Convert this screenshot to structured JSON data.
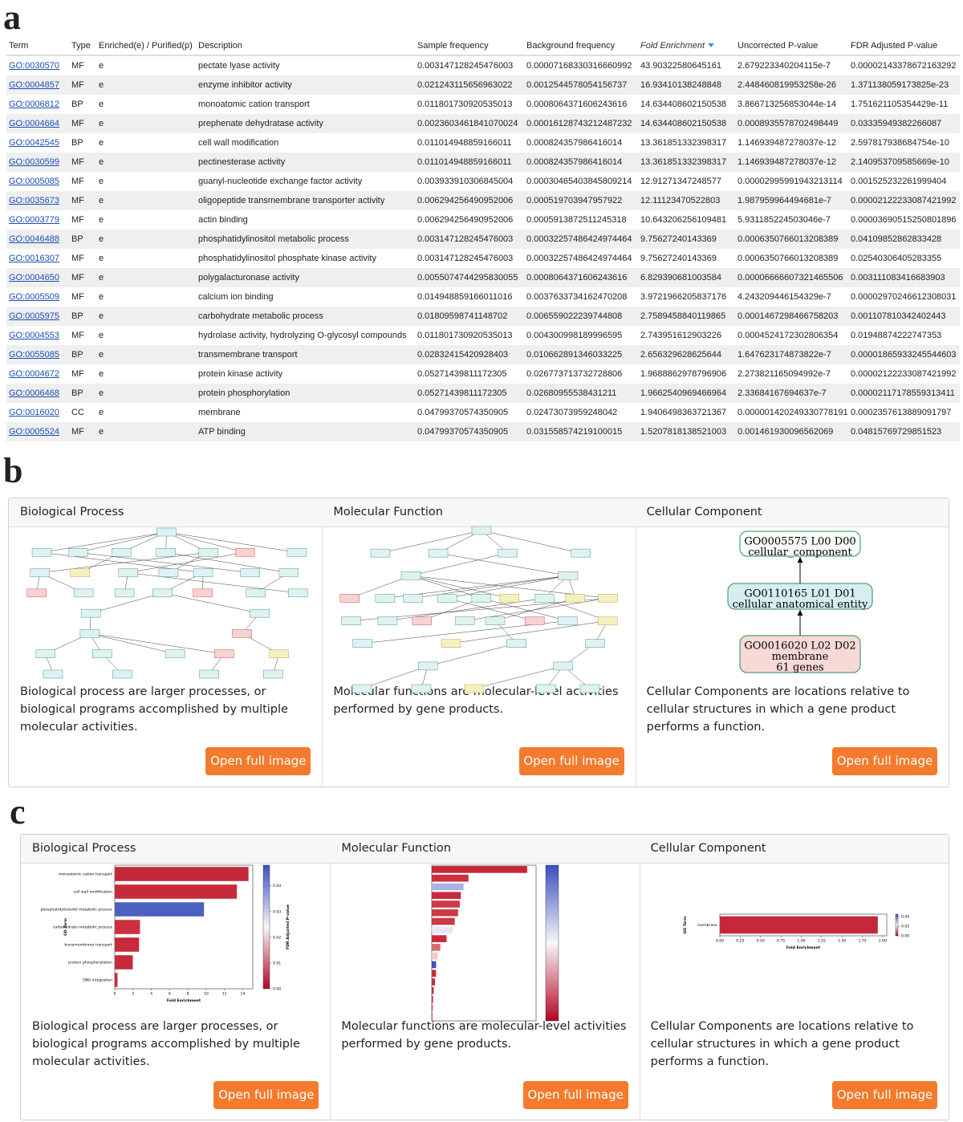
{
  "panel_labels": [
    "a",
    "b",
    "c"
  ],
  "table": {
    "headers": [
      "Term",
      "Type",
      "Enriched(e) / Purified(p)",
      "Description",
      "Sample frequency",
      "Background frequency",
      "Fold Enrichment",
      "Uncorrected P-value",
      "FDR Adjusted P-value"
    ],
    "rows": [
      [
        "GO:0030570",
        "MF",
        "e",
        "pectate lyase activity",
        "0.003147128245476003",
        "0.00007168330316660992",
        "43.90322580645161",
        "2.679223340204115e-7",
        "0.00002143378672163292"
      ],
      [
        "GO:0004857",
        "MF",
        "e",
        "enzyme inhibitor activity",
        "0.021243115656963022",
        "0.0012544578054156737",
        "16.93410138248848",
        "2.448460819953258e-26",
        "1.371138059173825e-23"
      ],
      [
        "GO:0006812",
        "BP",
        "e",
        "monoatomic cation transport",
        "0.011801730920535013",
        "0.0008064371606243616",
        "14.634408602150538",
        "3.866713256853044e-14",
        "1.751621105354429e-11"
      ],
      [
        "GO:0004664",
        "MF",
        "e",
        "prephenate dehydratase activity",
        "0.0023603461841070024",
        "0.00016128743212487232",
        "14.634408602150538",
        "0.0008935578702498449",
        "0.03335949382266087"
      ],
      [
        "GO:0042545",
        "BP",
        "e",
        "cell wall modification",
        "0.011014948859166011",
        "0.000824357986416014",
        "13.361851332398317",
        "1.146939487278037e-12",
        "2.597817938684754e-10"
      ],
      [
        "GO:0030599",
        "MF",
        "e",
        "pectinesterase activity",
        "0.011014948859166011",
        "0.000824357986416014",
        "13.361851332398317",
        "1.146939487278037e-12",
        "2.140953709585669e-10"
      ],
      [
        "GO:0005085",
        "MF",
        "e",
        "guanyl-nucleotide exchange factor activity",
        "0.003933910306845004",
        "0.00030465403845809214",
        "12.91271347248577",
        "0.00002995991943213114",
        "0.001525232261999404"
      ],
      [
        "GO:0035673",
        "MF",
        "e",
        "oligopeptide transmembrane transporter activity",
        "0.006294256490952006",
        "0.000519703947957922",
        "12.11123470522803",
        "1.987959964494681e-7",
        "0.00002122233087421992"
      ],
      [
        "GO:0003779",
        "MF",
        "e",
        "actin binding",
        "0.006294256490952006",
        "0.0005913872511245318",
        "10.643206256109481",
        "5.931185224503046e-7",
        "0.00003690515250801896"
      ],
      [
        "GO:0046488",
        "BP",
        "e",
        "phosphatidylinositol metabolic process",
        "0.003147128245476003",
        "0.00032257486424974464",
        "9.75627240143369",
        "0.0006350766013208389",
        "0.04109852862833428"
      ],
      [
        "GO:0016307",
        "MF",
        "e",
        "phosphatidylinositol phosphate kinase activity",
        "0.003147128245476003",
        "0.00032257486424974464",
        "9.75627240143369",
        "0.0006350766013208389",
        "0.02540306405283355"
      ],
      [
        "GO:0004650",
        "MF",
        "e",
        "polygalacturonase activity",
        "0.0055074744295830055",
        "0.0008064371606243616",
        "6.829390681003584",
        "0.00006666607321465506",
        "0.003111083416683903"
      ],
      [
        "GO:0005509",
        "MF",
        "e",
        "calcium ion binding",
        "0.014948859166011016",
        "0.0037633734162470208",
        "3.9721966205837176",
        "4.243209446154329e-7",
        "0.00002970246612308031"
      ],
      [
        "GO:0005975",
        "BP",
        "e",
        "carbohydrate metabolic process",
        "0.01809598741148702",
        "0.006559022239744808",
        "2.7589458840119865",
        "0.0001467298466758203",
        "0.001107810342402443"
      ],
      [
        "GO:0004553",
        "MF",
        "e",
        "hydrolase activity, hydrolyzing O-glycosyl compounds",
        "0.011801730920535013",
        "0.004300998189996595",
        "2.743951612903226",
        "0.0004524172302806354",
        "0.01948874222747353"
      ],
      [
        "GO:0055085",
        "BP",
        "e",
        "transmembrane transport",
        "0.02832415420928403",
        "0.010662891346033225",
        "2.656329628625644",
        "1.647623174873822e-7",
        "0.00001865933245544603"
      ],
      [
        "GO:0004672",
        "MF",
        "e",
        "protein kinase activity",
        "0.05271439811172305",
        "0.026773713732728806",
        "1.9688862978796906",
        "2.273821165094992e-7",
        "0.00002122233087421992"
      ],
      [
        "GO:0006468",
        "BP",
        "e",
        "protein phosphorylation",
        "0.05271439811172305",
        "0.02680955538431211",
        "1.9662540969466964",
        "2.33684167694637e-7",
        "0.00002117178559313411"
      ],
      [
        "GO:0016020",
        "CC",
        "e",
        "membrane",
        "0.04799370574350905",
        "0.02473073959248042",
        "1.9406498363721367",
        "0.000001420249330778191",
        "0.0002357613889091797"
      ],
      [
        "GO:0005524",
        "MF",
        "e",
        "ATP binding",
        "0.04799370574350905",
        "0.031558574219100015",
        "1.5207818138521003",
        "0.001461930096562069",
        "0.04815769729851523"
      ]
    ]
  },
  "graph_cards": [
    {
      "title": "Biological Process",
      "description": "Biological process are larger processes, or biological programs accomplished by multiple molecular activities.",
      "button": "Open full image"
    },
    {
      "title": "Molecular Function",
      "description": "Molecular functions are molecular-level activities performed by gene products.",
      "button": "Open full image"
    },
    {
      "title": "Cellular Component",
      "description": "Cellular Components are locations relative to cellular structures in which a gene product performs a function.",
      "button": "Open full image"
    }
  ],
  "cellular_component_nodes": [
    [
      "GO0005575 L00 D00",
      "cellular_component"
    ],
    [
      "GO0110165 L01 D01",
      "cellular anatomical entity"
    ],
    [
      "GO0016020 L02 D02",
      "membrane",
      "61 genes"
    ]
  ],
  "chart_cards": [
    {
      "title": "Biological Process",
      "description": "Biological process are larger processes, or biological programs accomplished by multiple molecular activities.",
      "button": "Open full image"
    },
    {
      "title": "Molecular Function",
      "description": "Molecular functions are molecular-level activities performed by gene products.",
      "button": "Open full image"
    },
    {
      "title": "Cellular Component",
      "description": "Cellular Components are locations relative to cellular structures in which a gene product performs a function.",
      "button": "Open full image"
    }
  ],
  "chart_data": [
    {
      "type": "bar",
      "orientation": "horizontal",
      "categories": [
        "monoatomic cation transport",
        "cell wall modification",
        "phosphatidylinositol metabolic process",
        "carbohydrate metabolic process",
        "transmembrane transport",
        "protein phosphorylation",
        "DNA integration"
      ],
      "values": [
        14.63,
        13.36,
        9.76,
        2.76,
        2.66,
        1.97,
        0.3
      ],
      "colors": [
        "#c5283a",
        "#c8293b",
        "#4d5fc0",
        "#cc2f3d",
        "#c8293b",
        "#c8293b",
        "#c8293b"
      ],
      "xlim": [
        0,
        15.1
      ],
      "xticks": [
        0,
        2,
        4,
        6,
        8,
        10,
        12,
        14
      ],
      "x_label": "Fold Enrichment",
      "y_label": "GO Term",
      "colorbar_label": "FDR Adjusted P-value",
      "colorbar_lim": [
        0,
        0.048
      ],
      "colorbar_ticks": [
        {
          "value": 0,
          "label": "0.00"
        },
        {
          "value": 0.01,
          "label": "0.01"
        },
        {
          "value": 0.02,
          "label": "0.02"
        },
        {
          "value": 0.03,
          "label": "0.03"
        },
        {
          "value": 0.04,
          "label": "0.04"
        }
      ]
    },
    {
      "type": "bar",
      "orientation": "horizontal",
      "categories": [
        null,
        null,
        null,
        null,
        null,
        null,
        null,
        null,
        null,
        null,
        null,
        null,
        null,
        null,
        null,
        null,
        null,
        null
      ],
      "values": [
        43.9,
        16.9,
        14.6,
        13.4,
        12.9,
        12.1,
        10.6,
        9.76,
        6.83,
        3.97,
        2.74,
        2.0,
        1.97,
        1.52,
        0.9,
        0.6,
        0.4,
        0.3
      ],
      "colors": [
        "#c5283a",
        "#cc2f3d",
        "#a9b4e2",
        "#c8293b",
        "#cc3a44",
        "#cc3a44",
        "#cc3a44",
        "#e9e6f2",
        "#c8293b",
        "#d86b6e",
        "#f2c9c9",
        "#3a52b8",
        "#c8293b",
        "#c8293b",
        "#c8293b",
        "#c8293b",
        "#c8293b",
        "#c8293b"
      ],
      "xlim": [
        0,
        48
      ]
    },
    {
      "type": "bar",
      "orientation": "horizontal",
      "categories": [
        "membrane"
      ],
      "values": [
        1.94
      ],
      "colors": [
        "#c5283a"
      ],
      "xlim": [
        0,
        2.05
      ],
      "xticks": [
        {
          "value": 0,
          "label": "0.00"
        },
        {
          "value": 0.25,
          "label": "0.25"
        },
        {
          "value": 0.5,
          "label": "0.50"
        },
        {
          "value": 0.75,
          "label": "0.75"
        },
        {
          "value": 1,
          "label": "1.00"
        },
        {
          "value": 1.25,
          "label": "1.25"
        },
        {
          "value": 1.5,
          "label": "1.50"
        },
        {
          "value": 1.75,
          "label": "1.75"
        },
        {
          "value": 2,
          "label": "2.00"
        }
      ],
      "x_label": "Fold Enrichment",
      "y_label": "GO Term",
      "colorbar_lim": [
        0,
        0.045
      ],
      "colorbar_ticks": [
        {
          "value": 0,
          "label": "0.00"
        },
        {
          "value": 0.02,
          "label": "0.02"
        },
        {
          "value": 0.04,
          "label": "0.04"
        }
      ]
    }
  ]
}
